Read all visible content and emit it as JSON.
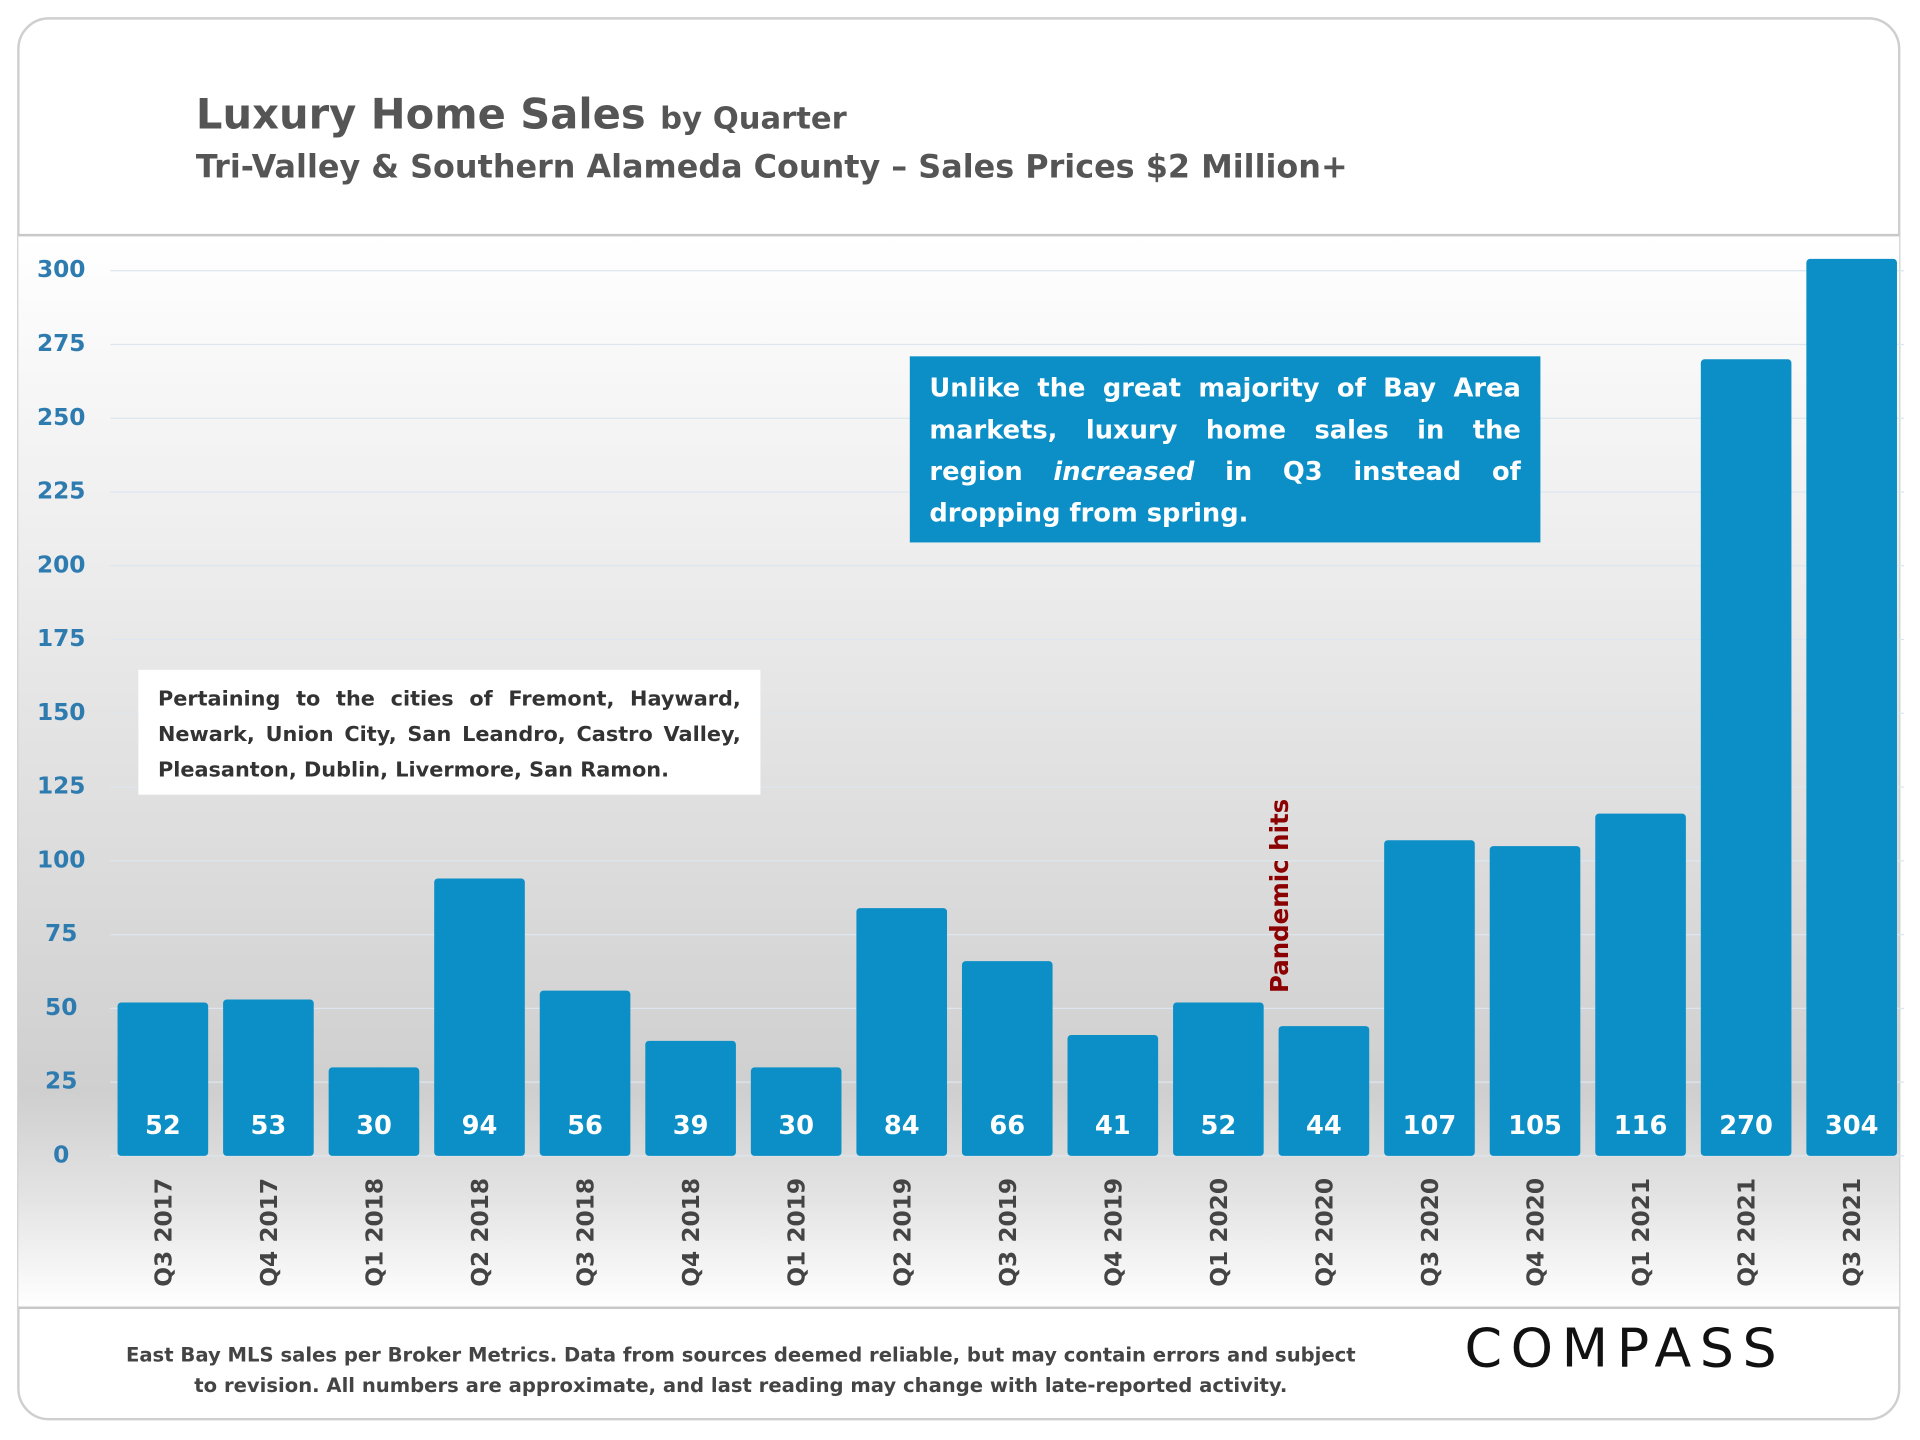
{
  "header": {
    "title": "Luxury Home Sales",
    "title_suffix": "by Quarter",
    "subtitle": "Tri-Valley & Southern Alameda County – Sales Prices $2 Million+"
  },
  "chart_data": {
    "type": "bar",
    "categories": [
      "Q3 2017",
      "Q4 2017",
      "Q1 2018",
      "Q2 2018",
      "Q3 2018",
      "Q4 2018",
      "Q1 2019",
      "Q2 2019",
      "Q3 2019",
      "Q4 2019",
      "Q1 2020",
      "Q2 2020",
      "Q3 2020",
      "Q4 2020",
      "Q1 2021",
      "Q2 2021",
      "Q3 2021"
    ],
    "values": [
      52,
      53,
      30,
      94,
      56,
      39,
      30,
      84,
      66,
      41,
      52,
      44,
      107,
      105,
      116,
      270,
      304
    ],
    "color": "#0b8fc6",
    "ylim": [
      0,
      310
    ],
    "yticks": [
      0,
      25,
      50,
      75,
      100,
      125,
      150,
      175,
      200,
      225,
      250,
      275,
      300
    ],
    "grid": true,
    "annotations": {
      "callout": [
        "Unlike the great majority of Bay Area markets, luxury home sales in the region",
        "increased",
        "in Q3 instead of dropping from spring."
      ],
      "cities": "Pertaining to the cities of Fremont, Hayward, Newark, Union City, San Leandro, Castro Valley, Pleasanton, Dublin, Livermore, San Ramon.",
      "event": "Pandemic hits"
    }
  },
  "footer": {
    "lines": [
      "East Bay MLS sales per Broker Metrics. Data from sources deemed reliable, but may contain errors and subject",
      "to revision. All numbers are approximate, and last reading may change with late-reported activity."
    ],
    "logo": "COMPASS"
  }
}
